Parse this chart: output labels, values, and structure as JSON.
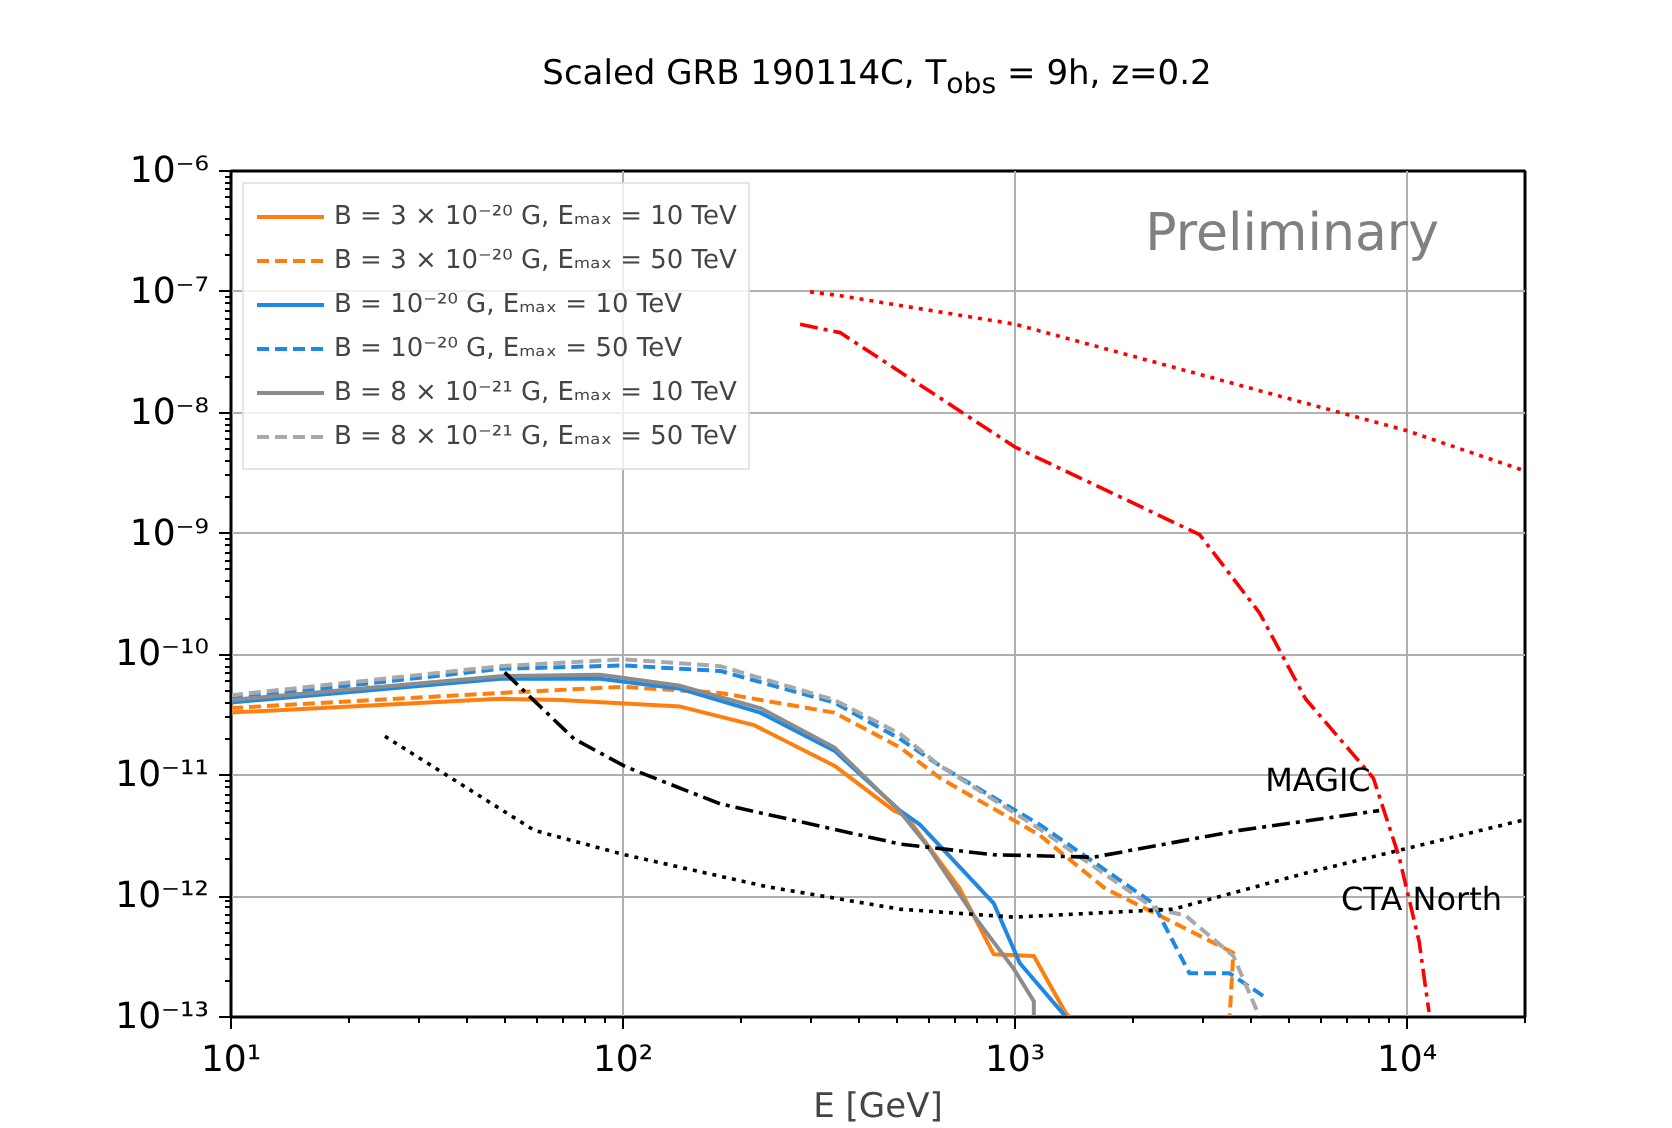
{
  "chart_data": {
    "type": "line",
    "title": "Scaled GRB 190114C, T$_{obs}$ = 9h, z=0.2",
    "xlabel": "E [GeV]",
    "log": "xy",
    "grid": true,
    "legend": "top left",
    "xlim": [
      10,
      20000
    ],
    "ylim": [
      1e-13,
      1e-06
    ],
    "xticks": [
      {
        "value": 10,
        "label": "10¹"
      },
      {
        "value": 100,
        "label": "10²"
      },
      {
        "value": 1000,
        "label": "10³"
      },
      {
        "value": 10000,
        "label": "10⁴"
      }
    ],
    "yticks": [
      {
        "value": 1e-13,
        "label": "10⁻¹³"
      },
      {
        "value": 1e-12,
        "label": "10⁻¹²"
      },
      {
        "value": 1e-11,
        "label": "10⁻¹¹"
      },
      {
        "value": 1e-10,
        "label": "10⁻¹⁰"
      },
      {
        "value": 1e-09,
        "label": "10⁻⁹"
      },
      {
        "value": 1e-08,
        "label": "10⁻⁸"
      },
      {
        "value": 1e-07,
        "label": "10⁻⁷"
      },
      {
        "value": 1e-06,
        "label": "10⁻⁶"
      }
    ],
    "annotations": [
      "Preliminary",
      "MAGIC",
      "CTA North"
    ],
    "series": [
      {
        "name": "B = 3 × 10⁻²⁰ G, Eₘₐₓ = 10 TeV",
        "color": "#ff7f0e",
        "line_style": "solid",
        "x": [
          10,
          48.7,
          69,
          140,
          216,
          346,
          491,
          527,
          723,
          883,
          1117,
          1349,
          1380
        ],
        "values": [
          3.3e-11,
          4.3e-11,
          4.2e-11,
          3.7e-11,
          2.6e-11,
          1.2e-11,
          5.1e-12,
          4.6e-12,
          1.15e-12,
          3.3e-13,
          3.2e-13,
          1.07e-13,
          1e-13
        ]
      },
      {
        "name": "B = 3 × 10⁻²⁰ G, Eₘₐₓ = 50 TeV",
        "color": "#ff7f0e",
        "line_style": "dashed",
        "x": [
          10,
          48.7,
          100,
          177,
          346,
          509,
          643,
          1156,
          1702,
          2339,
          3606,
          3528
        ],
        "values": [
          3.6e-11,
          4.8e-11,
          5.4e-11,
          4.8e-11,
          3.3e-11,
          1.7e-11,
          9.5e-12,
          3.2e-12,
          1.15e-12,
          6.9e-13,
          3.4e-13,
          1e-13
        ]
      },
      {
        "name": "B = 10⁻²⁰ G, Eₘₐₓ = 10 TeV",
        "color": "#1e88e5",
        "line_style": "solid",
        "x": [
          10,
          48.7,
          87.5,
          140,
          224,
          346,
          509,
          572,
          883,
          1028,
          1349
        ],
        "values": [
          4e-11,
          6.3e-11,
          6.3e-11,
          5.2e-11,
          3.3e-11,
          1.6e-11,
          5.1e-12,
          3.9e-12,
          8.7e-13,
          2.8e-13,
          1e-13
        ]
      },
      {
        "name": "B = 10⁻²⁰ G, Eₘₐₓ = 50 TeV",
        "color": "#1e88e5",
        "line_style": "dashed",
        "x": [
          10,
          48.7,
          100,
          177,
          346,
          509,
          643,
          1156,
          2254,
          2786,
          3528,
          4355
        ],
        "values": [
          4.3e-11,
          7.6e-11,
          8.1e-11,
          7.3e-11,
          4e-11,
          2e-11,
          1.2e-11,
          3.9e-12,
          8.7e-13,
          2.3e-13,
          2.3e-13,
          1.45e-13
        ]
      },
      {
        "name": "B = 8 × 10⁻²¹ G, Eₘₐₓ = 10 TeV",
        "color": "#8c8c8c",
        "line_style": "solid",
        "x": [
          10,
          48.7,
          87.5,
          140,
          224,
          346,
          509,
          593,
          785,
          993,
          1117,
          1117
        ],
        "values": [
          4.2e-11,
          6.6e-11,
          6.8e-11,
          5.5e-11,
          3.6e-11,
          1.7e-11,
          5e-12,
          2.7e-12,
          6.9e-13,
          2.5e-13,
          1.35e-13,
          1e-13
        ]
      },
      {
        "name": "B = 8 × 10⁻²¹ G, Eₘₐₓ = 50 TeV",
        "color": "#a9a9a9",
        "line_style": "dashed",
        "x": [
          10,
          48.7,
          100,
          177,
          346,
          509,
          643,
          1156,
          2254,
          2723,
          3606,
          4207
        ],
        "values": [
          4.6e-11,
          8e-11,
          9.1e-11,
          8e-11,
          4.2e-11,
          2.2e-11,
          1.2e-11,
          3.6e-12,
          8e-13,
          6.9e-13,
          3.2e-13,
          1e-13
        ]
      },
      {
        "color": "#ff0000",
        "line_style": "dotted",
        "x": [
          300,
          358,
          1000,
          10000,
          20000
        ],
        "values": [
          1e-07,
          9.3e-08,
          5.4e-08,
          7.1e-09,
          3.3e-09
        ]
      },
      {
        "color": "#ff0000",
        "line_style": "dashdot",
        "x": [
          283,
          358,
          1000,
          2958,
          4207,
          5508,
          8204,
          9550,
          10740,
          11380
        ],
        "values": [
          5.4e-08,
          4.6e-08,
          5.2e-09,
          9.8e-10,
          2.2e-10,
          4.3e-11,
          9.5e-12,
          2.1e-12,
          4.2e-13,
          1.1e-13
        ]
      },
      {
        "color": "#000000",
        "line_style": "dashdot",
        "x": [
          49.9,
          75,
          102,
          177,
          509,
          883,
          1585,
          3740,
          8490
        ],
        "values": [
          7.1e-11,
          2e-11,
          1.17e-11,
          5.8e-12,
          2.7e-12,
          2.2e-12,
          2.1e-12,
          3.5e-12,
          5.1e-12
        ]
      },
      {
        "color": "#000000",
        "line_style": "dotted",
        "x": [
          24.7,
          59.4,
          101,
          232,
          509,
          993,
          2535,
          5510,
          20000
        ],
        "values": [
          2.1e-11,
          3.5e-12,
          2.2e-12,
          1.2e-12,
          7.8e-13,
          6.7e-13,
          7.8e-13,
          1.55e-12,
          4.3e-12
        ]
      }
    ]
  }
}
